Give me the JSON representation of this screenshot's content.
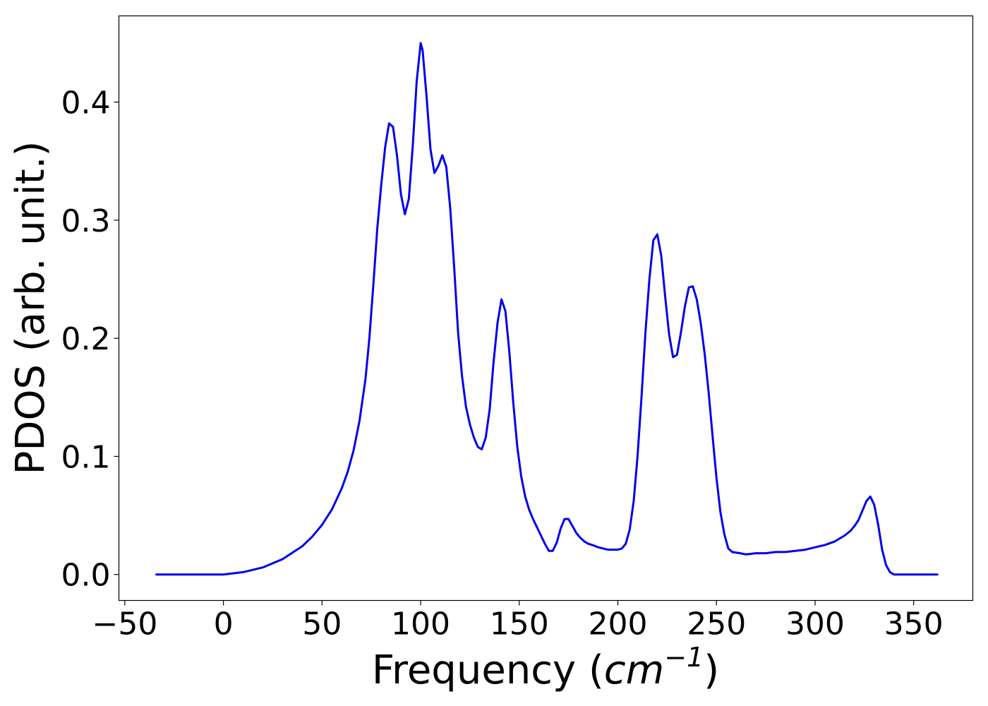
{
  "chart_data": {
    "type": "line",
    "title": "",
    "xlabel": "Frequency",
    "xlabel_unit_prefix": "(",
    "xlabel_unit_base": "cm",
    "xlabel_unit_exp": "−1",
    "xlabel_unit_suffix": ")",
    "ylabel": "PDOS (arb. unit.)",
    "xlim": [
      -53,
      380
    ],
    "ylim": [
      -0.022,
      0.473
    ],
    "xticks": [
      -50,
      0,
      50,
      100,
      150,
      200,
      250,
      300,
      350
    ],
    "xtick_labels": [
      "−50",
      "0",
      "50",
      "100",
      "150",
      "200",
      "250",
      "300",
      "350"
    ],
    "yticks": [
      0.0,
      0.1,
      0.2,
      0.3,
      0.4
    ],
    "ytick_labels": [
      "0.0",
      "0.1",
      "0.2",
      "0.3",
      "0.4"
    ],
    "grid": false,
    "series": [
      {
        "color": "#0000ee",
        "x": [
          -34,
          -20,
          -10,
          0,
          10,
          20,
          30,
          40,
          45,
          50,
          55,
          60,
          63,
          66,
          69,
          72,
          74,
          76,
          78,
          80,
          82,
          84,
          86,
          88,
          90,
          92,
          94,
          96,
          98,
          100,
          101,
          103,
          105,
          107,
          109,
          111,
          113,
          115,
          117,
          119,
          121,
          123,
          125,
          127,
          129,
          131,
          133,
          135,
          137,
          139,
          141,
          143,
          145,
          147,
          149,
          151,
          153,
          155,
          157,
          159,
          161,
          163,
          165,
          167,
          169,
          171,
          173,
          175,
          177,
          179,
          181,
          183,
          185,
          187,
          190,
          195,
          200,
          202,
          204,
          206,
          208,
          210,
          212,
          214,
          216,
          218,
          220,
          222,
          224,
          226,
          228,
          230,
          232,
          234,
          236,
          238,
          240,
          242,
          244,
          246,
          248,
          250,
          252,
          254,
          256,
          258,
          262,
          265,
          270,
          275,
          280,
          285,
          290,
          295,
          300,
          305,
          310,
          315,
          318,
          320,
          322,
          324,
          326,
          328,
          330,
          332,
          334,
          336,
          338,
          340,
          345,
          350,
          355,
          362
        ],
        "y": [
          0.0,
          0.0,
          0.0,
          0.0,
          0.002,
          0.006,
          0.013,
          0.024,
          0.032,
          0.042,
          0.055,
          0.073,
          0.087,
          0.105,
          0.13,
          0.165,
          0.2,
          0.245,
          0.293,
          0.33,
          0.362,
          0.382,
          0.379,
          0.355,
          0.322,
          0.305,
          0.318,
          0.363,
          0.418,
          0.45,
          0.444,
          0.405,
          0.36,
          0.34,
          0.346,
          0.355,
          0.345,
          0.31,
          0.26,
          0.205,
          0.168,
          0.142,
          0.127,
          0.116,
          0.108,
          0.106,
          0.116,
          0.14,
          0.18,
          0.213,
          0.233,
          0.223,
          0.188,
          0.145,
          0.108,
          0.083,
          0.066,
          0.055,
          0.047,
          0.04,
          0.033,
          0.026,
          0.02,
          0.02,
          0.027,
          0.039,
          0.047,
          0.047,
          0.041,
          0.035,
          0.031,
          0.028,
          0.026,
          0.025,
          0.023,
          0.021,
          0.021,
          0.022,
          0.026,
          0.038,
          0.062,
          0.1,
          0.15,
          0.205,
          0.25,
          0.283,
          0.288,
          0.27,
          0.235,
          0.203,
          0.184,
          0.186,
          0.205,
          0.227,
          0.243,
          0.244,
          0.233,
          0.213,
          0.187,
          0.155,
          0.118,
          0.082,
          0.053,
          0.034,
          0.022,
          0.019,
          0.018,
          0.017,
          0.018,
          0.018,
          0.019,
          0.019,
          0.02,
          0.021,
          0.023,
          0.025,
          0.028,
          0.033,
          0.037,
          0.041,
          0.046,
          0.054,
          0.062,
          0.066,
          0.059,
          0.042,
          0.021,
          0.008,
          0.002,
          0.0,
          0.0,
          0.0,
          0.0,
          0.0
        ]
      }
    ]
  }
}
